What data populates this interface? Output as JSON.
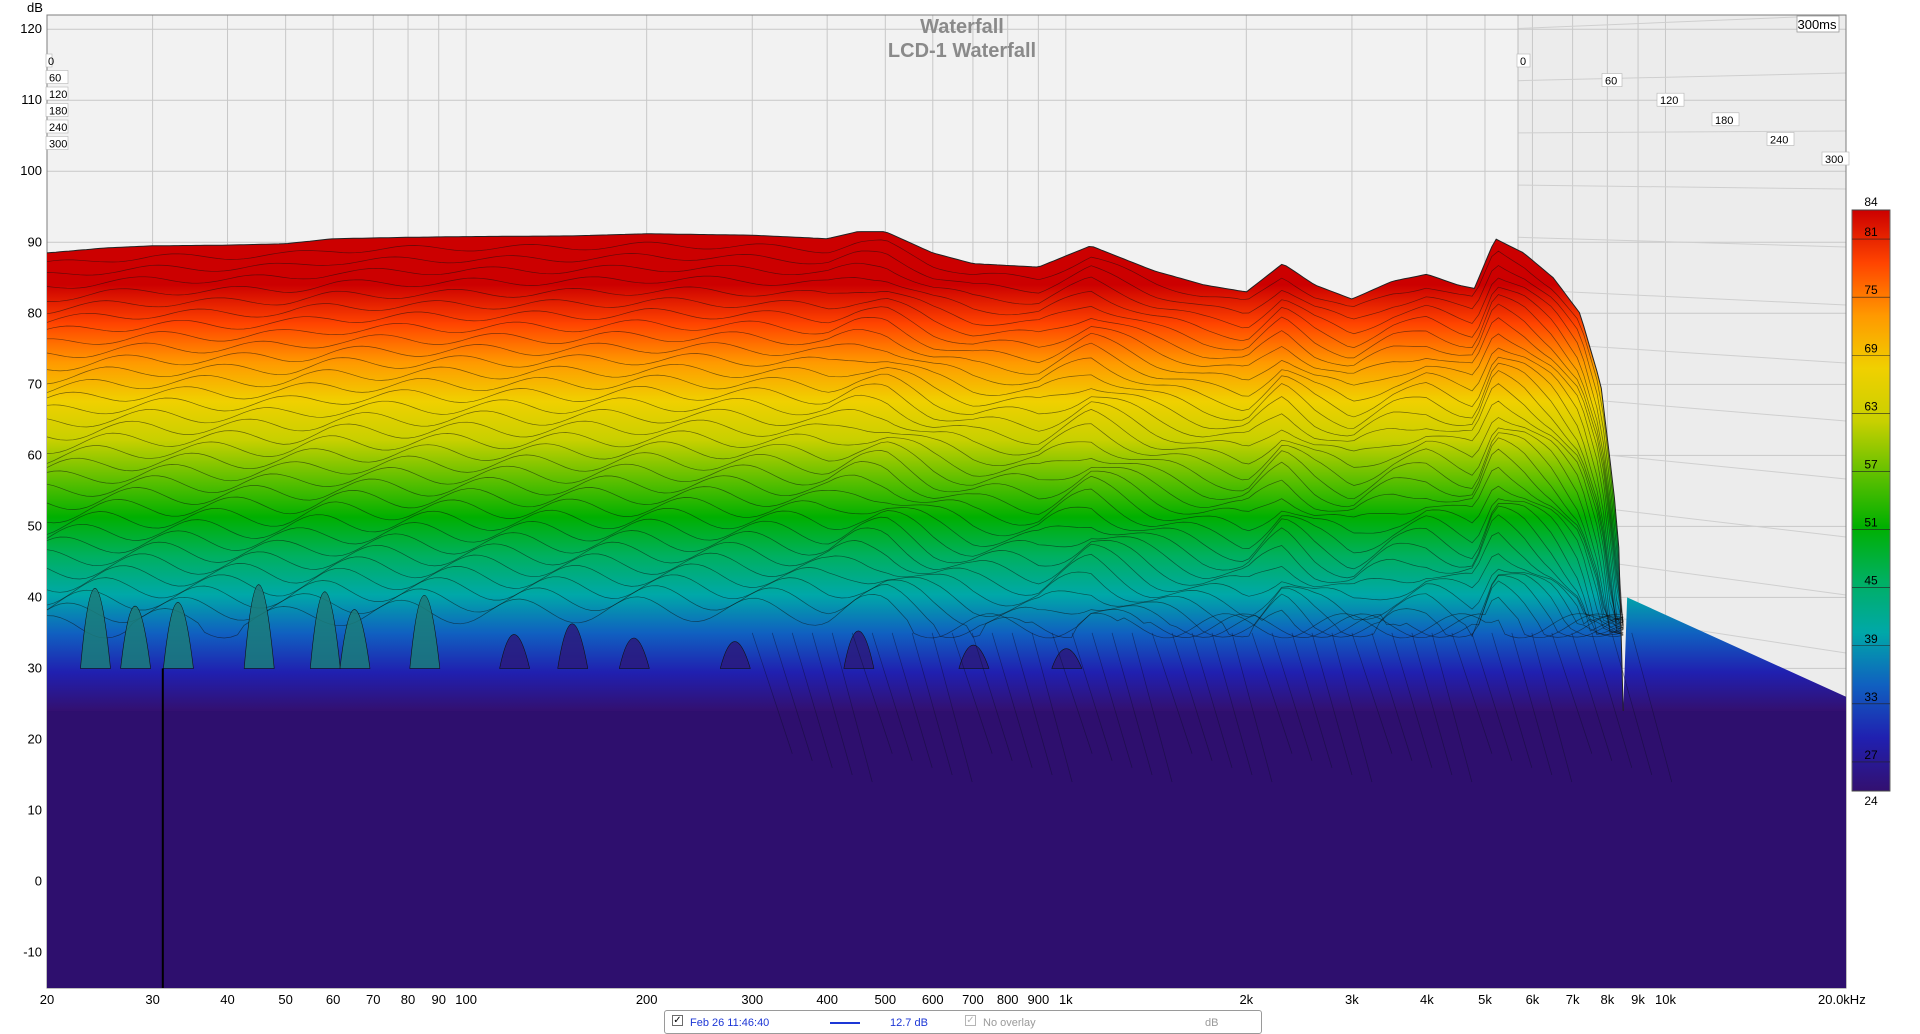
{
  "chart_data": {
    "type": "area",
    "title": "Waterfall",
    "subtitle": "LCD-1 Waterfall",
    "ylabel": "dB",
    "xlabel": "",
    "x_scale": "log",
    "xlim": [
      20,
      20000
    ],
    "ylim": [
      -15,
      122
    ],
    "y_ticks": [
      120,
      110,
      100,
      90,
      80,
      70,
      60,
      50,
      40,
      30,
      20,
      10,
      0,
      -10
    ],
    "x_ticks": [
      {
        "value": 20,
        "label": "20"
      },
      {
        "value": 30,
        "label": "30"
      },
      {
        "value": 40,
        "label": "40"
      },
      {
        "value": 50,
        "label": "50"
      },
      {
        "value": 60,
        "label": "60"
      },
      {
        "value": 70,
        "label": "70"
      },
      {
        "value": 80,
        "label": "80"
      },
      {
        "value": 90,
        "label": "90"
      },
      {
        "value": 100,
        "label": "100"
      },
      {
        "value": 200,
        "label": "200"
      },
      {
        "value": 300,
        "label": "300"
      },
      {
        "value": 400,
        "label": "400"
      },
      {
        "value": 500,
        "label": "500"
      },
      {
        "value": 600,
        "label": "600"
      },
      {
        "value": 700,
        "label": "700"
      },
      {
        "value": 800,
        "label": "800"
      },
      {
        "value": 900,
        "label": "900"
      },
      {
        "value": 1000,
        "label": "1k"
      },
      {
        "value": 2000,
        "label": "2k"
      },
      {
        "value": 3000,
        "label": "3k"
      },
      {
        "value": 4000,
        "label": "4k"
      },
      {
        "value": 5000,
        "label": "5k"
      },
      {
        "value": 6000,
        "label": "6k"
      },
      {
        "value": 7000,
        "label": "7k"
      },
      {
        "value": 8000,
        "label": "8k"
      },
      {
        "value": 9000,
        "label": "9k"
      },
      {
        "value": 10000,
        "label": "10k"
      },
      {
        "value": 20000,
        "label": "20.0kHz"
      }
    ],
    "time_axis": {
      "end_label": "300ms",
      "ticks": [
        "0",
        "60",
        "120",
        "180",
        "240",
        "300"
      ]
    },
    "colorbar": {
      "min": 24,
      "max": 84,
      "ticks": [
        84,
        81,
        75,
        69,
        63,
        57,
        51,
        45,
        39,
        33,
        27,
        24
      ],
      "colors": [
        "#cc0000",
        "#ff4400",
        "#ff9900",
        "#f0d000",
        "#c8d000",
        "#60c000",
        "#00b000",
        "#00b060",
        "#00a8a8",
        "#1060c0",
        "#2020b0",
        "#331070"
      ]
    },
    "series": [
      {
        "time_ms": 0,
        "x": [
          20,
          25,
          30,
          40,
          50,
          60,
          80,
          100,
          150,
          200,
          300,
          400,
          450,
          500,
          600,
          700,
          900,
          1100,
          1400,
          1700,
          2000,
          2300,
          2600,
          3000,
          3500,
          4000,
          4500,
          4800,
          5200,
          5800,
          6500,
          7200,
          7800,
          8200,
          8500
        ],
        "y": [
          88.5,
          89.2,
          89.5,
          89.6,
          89.8,
          90.5,
          90.7,
          90.8,
          90.9,
          91.2,
          91.0,
          90.5,
          91.5,
          91.5,
          88.5,
          87.0,
          86.5,
          89.5,
          86.0,
          84.0,
          83.0,
          87.0,
          84.0,
          82.0,
          84.5,
          85.5,
          84.0,
          83.5,
          90.5,
          88.5,
          85.0,
          80.0,
          70.0,
          55.0,
          40.0
        ]
      }
    ],
    "floor_db": 24
  },
  "legend": {
    "date": "Feb 26 11:46:40",
    "check_mark": "✓",
    "value": "12.7 dB",
    "overlay": "No overlay",
    "unit": "dB"
  }
}
